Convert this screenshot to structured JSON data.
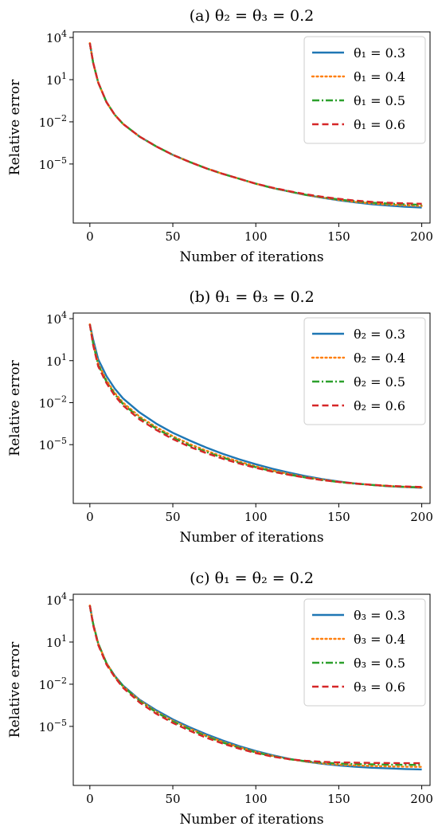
{
  "chart_data": [
    {
      "type": "line",
      "title": "(a) θ₂ = θ₃ = 0.2",
      "xlabel": "Number of iterations",
      "ylabel": "Relative error",
      "xlim": [
        -10,
        205
      ],
      "ylim_log10": [
        -9.2,
        4.4
      ],
      "yscale": "log",
      "xticks": [
        "0",
        "50",
        "100",
        "150",
        "200"
      ],
      "yticks": [
        {
          "base": "10",
          "exp": "4",
          "value": 10000
        },
        {
          "base": "10",
          "exp": "1",
          "value": 10
        },
        {
          "base": "10",
          "exp": "−2",
          "value": 0.01
        },
        {
          "base": "10",
          "exp": "−5",
          "value": 1e-05
        }
      ],
      "legend_position": "top-right",
      "x": [
        0,
        2,
        5,
        10,
        15,
        20,
        30,
        40,
        50,
        60,
        70,
        80,
        90,
        100,
        110,
        120,
        130,
        140,
        150,
        160,
        170,
        180,
        190,
        200
      ],
      "series": [
        {
          "name": "θ₁ = 0.3",
          "color": "#1f77b4",
          "dash": "solid",
          "log10_values": [
            3.6,
            2.2,
            0.8,
            -0.6,
            -1.5,
            -2.15,
            -3.05,
            -3.75,
            -4.35,
            -4.85,
            -5.3,
            -5.7,
            -6.05,
            -6.4,
            -6.7,
            -6.95,
            -7.2,
            -7.4,
            -7.58,
            -7.73,
            -7.86,
            -7.96,
            -8.04,
            -8.1
          ]
        },
        {
          "name": "θ₁ = 0.4",
          "color": "#ff7f0e",
          "dash": "dotted",
          "log10_values": [
            3.6,
            2.2,
            0.8,
            -0.6,
            -1.5,
            -2.15,
            -3.05,
            -3.75,
            -4.35,
            -4.85,
            -5.3,
            -5.7,
            -6.05,
            -6.4,
            -6.7,
            -6.95,
            -7.2,
            -7.38,
            -7.55,
            -7.69,
            -7.8,
            -7.88,
            -7.94,
            -7.98
          ]
        },
        {
          "name": "θ₁ = 0.5",
          "color": "#2ca02c",
          "dash": "dashdot",
          "log10_values": [
            3.6,
            2.2,
            0.8,
            -0.6,
            -1.5,
            -2.15,
            -3.05,
            -3.75,
            -4.35,
            -4.85,
            -5.3,
            -5.7,
            -6.05,
            -6.4,
            -6.7,
            -6.95,
            -7.18,
            -7.36,
            -7.52,
            -7.65,
            -7.75,
            -7.82,
            -7.87,
            -7.9
          ]
        },
        {
          "name": "θ₁ = 0.6",
          "color": "#d62728",
          "dash": "dashed",
          "log10_values": [
            3.6,
            2.2,
            0.8,
            -0.6,
            -1.5,
            -2.15,
            -3.05,
            -3.75,
            -4.35,
            -4.85,
            -5.3,
            -5.7,
            -6.05,
            -6.4,
            -6.68,
            -6.93,
            -7.15,
            -7.33,
            -7.48,
            -7.6,
            -7.7,
            -7.76,
            -7.8,
            -7.83
          ]
        }
      ]
    },
    {
      "type": "line",
      "title": "(b) θ₁ = θ₃ = 0.2",
      "xlabel": "Number of iterations",
      "ylabel": "Relative error",
      "xlim": [
        -10,
        205
      ],
      "ylim_log10": [
        -9.2,
        4.4
      ],
      "yscale": "log",
      "xticks": [
        "0",
        "50",
        "100",
        "150",
        "200"
      ],
      "yticks": [
        {
          "base": "10",
          "exp": "4",
          "value": 10000
        },
        {
          "base": "10",
          "exp": "1",
          "value": 10
        },
        {
          "base": "10",
          "exp": "−2",
          "value": 0.01
        },
        {
          "base": "10",
          "exp": "−5",
          "value": 1e-05
        }
      ],
      "legend_position": "top-right",
      "x": [
        0,
        2,
        5,
        10,
        15,
        20,
        30,
        40,
        50,
        60,
        70,
        80,
        90,
        100,
        110,
        120,
        130,
        140,
        150,
        160,
        170,
        180,
        190,
        200
      ],
      "series": [
        {
          "name": "θ₂ = 0.3",
          "color": "#1f77b4",
          "dash": "solid",
          "log10_values": [
            3.6,
            2.5,
            1.1,
            -0.1,
            -1.0,
            -1.7,
            -2.7,
            -3.5,
            -4.15,
            -4.7,
            -5.2,
            -5.65,
            -6.05,
            -6.4,
            -6.72,
            -7.0,
            -7.25,
            -7.46,
            -7.63,
            -7.77,
            -7.88,
            -7.97,
            -8.03,
            -8.08
          ]
        },
        {
          "name": "θ₂ = 0.4",
          "color": "#ff7f0e",
          "dash": "dotted",
          "log10_values": [
            3.6,
            2.3,
            0.8,
            -0.4,
            -1.3,
            -2.0,
            -3.0,
            -3.75,
            -4.4,
            -4.95,
            -5.42,
            -5.85,
            -6.22,
            -6.55,
            -6.85,
            -7.1,
            -7.32,
            -7.5,
            -7.65,
            -7.78,
            -7.88,
            -7.96,
            -8.02,
            -8.06
          ]
        },
        {
          "name": "θ₂ = 0.5",
          "color": "#2ca02c",
          "dash": "dashdot",
          "log10_values": [
            3.6,
            2.2,
            0.7,
            -0.5,
            -1.4,
            -2.1,
            -3.1,
            -3.85,
            -4.5,
            -5.05,
            -5.52,
            -5.93,
            -6.29,
            -6.61,
            -6.9,
            -7.14,
            -7.35,
            -7.53,
            -7.67,
            -7.79,
            -7.88,
            -7.96,
            -8.01,
            -8.05
          ]
        },
        {
          "name": "θ₂ = 0.6",
          "color": "#d62728",
          "dash": "dashed",
          "log10_values": [
            3.6,
            2.1,
            0.6,
            -0.6,
            -1.5,
            -2.2,
            -3.2,
            -3.95,
            -4.6,
            -5.15,
            -5.6,
            -6.0,
            -6.35,
            -6.66,
            -6.93,
            -7.16,
            -7.36,
            -7.53,
            -7.67,
            -7.78,
            -7.87,
            -7.94,
            -7.99,
            -8.03
          ]
        }
      ]
    },
    {
      "type": "line",
      "title": "(c) θ₁ = θ₂ = 0.2",
      "xlabel": "Number of iterations",
      "ylabel": "Relative error",
      "xlim": [
        -10,
        205
      ],
      "ylim_log10": [
        -9.2,
        4.4
      ],
      "yscale": "log",
      "xticks": [
        "0",
        "50",
        "100",
        "150",
        "200"
      ],
      "yticks": [
        {
          "base": "10",
          "exp": "4",
          "value": 10000
        },
        {
          "base": "10",
          "exp": "1",
          "value": 10
        },
        {
          "base": "10",
          "exp": "−2",
          "value": 0.01
        },
        {
          "base": "10",
          "exp": "−5",
          "value": 1e-05
        }
      ],
      "legend_position": "top-right",
      "x": [
        0,
        2,
        5,
        10,
        15,
        20,
        30,
        40,
        50,
        60,
        70,
        80,
        90,
        100,
        110,
        120,
        130,
        140,
        150,
        160,
        170,
        180,
        190,
        200
      ],
      "series": [
        {
          "name": "θ₃ = 0.3",
          "color": "#1f77b4",
          "dash": "solid",
          "log10_values": [
            3.6,
            2.3,
            0.9,
            -0.5,
            -1.4,
            -2.1,
            -3.1,
            -3.85,
            -4.5,
            -5.05,
            -5.55,
            -6.0,
            -6.4,
            -6.75,
            -7.05,
            -7.3,
            -7.5,
            -7.66,
            -7.78,
            -7.87,
            -7.94,
            -7.99,
            -8.03,
            -8.06
          ]
        },
        {
          "name": "θ₃ = 0.4",
          "color": "#ff7f0e",
          "dash": "dotted",
          "log10_values": [
            3.6,
            2.3,
            0.9,
            -0.5,
            -1.45,
            -2.15,
            -3.15,
            -3.95,
            -4.6,
            -5.15,
            -5.65,
            -6.1,
            -6.48,
            -6.82,
            -7.1,
            -7.33,
            -7.5,
            -7.63,
            -7.72,
            -7.78,
            -7.82,
            -7.85,
            -7.87,
            -7.88
          ]
        },
        {
          "name": "θ₃ = 0.5",
          "color": "#2ca02c",
          "dash": "dashdot",
          "log10_values": [
            3.6,
            2.3,
            0.9,
            -0.5,
            -1.45,
            -2.15,
            -3.2,
            -4.0,
            -4.65,
            -5.2,
            -5.7,
            -6.15,
            -6.52,
            -6.85,
            -7.12,
            -7.33,
            -7.48,
            -7.58,
            -7.64,
            -7.68,
            -7.7,
            -7.72,
            -7.73,
            -7.74
          ]
        },
        {
          "name": "θ₃ = 0.6",
          "color": "#d62728",
          "dash": "dashed",
          "log10_values": [
            3.6,
            2.2,
            0.8,
            -0.6,
            -1.5,
            -2.25,
            -3.3,
            -4.1,
            -4.75,
            -5.3,
            -5.8,
            -6.22,
            -6.58,
            -6.9,
            -7.15,
            -7.33,
            -7.45,
            -7.52,
            -7.56,
            -7.58,
            -7.6,
            -7.61,
            -7.62,
            -7.62
          ]
        }
      ]
    }
  ]
}
